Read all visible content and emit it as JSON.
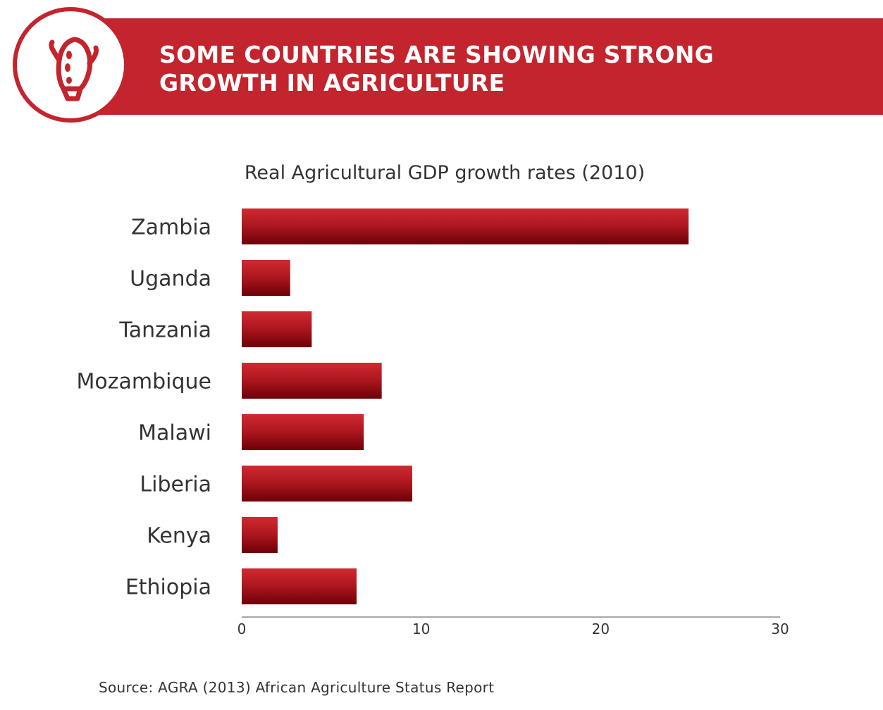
{
  "header": {
    "title_line1": "SOME COUNTRIES ARE SHOWING STRONG",
    "title_line2": "GROWTH IN AGRICULTURE",
    "logo_icon": "corn-icon"
  },
  "colors": {
    "brand": "#c4242d",
    "bar_top": "#c8222a",
    "bar_bottom": "#7a0008",
    "text": "#333333"
  },
  "chart_data": {
    "type": "bar",
    "orientation": "horizontal",
    "title": "Real Agricultural GDP growth rates (2010)",
    "categories": [
      "Zambia",
      "Uganda",
      "Tanzania",
      "Mozambique",
      "Malawi",
      "Liberia",
      "Kenya",
      "Ethiopia"
    ],
    "values": [
      24.9,
      2.7,
      3.9,
      7.8,
      6.8,
      9.5,
      2.0,
      6.4
    ],
    "xlim": [
      0,
      30
    ],
    "xticks": [
      0,
      10,
      20,
      30
    ],
    "xlabel": "",
    "ylabel": "",
    "grid": false,
    "legend": "none"
  },
  "source": "Source: AGRA (2013) African Agriculture Status Report"
}
